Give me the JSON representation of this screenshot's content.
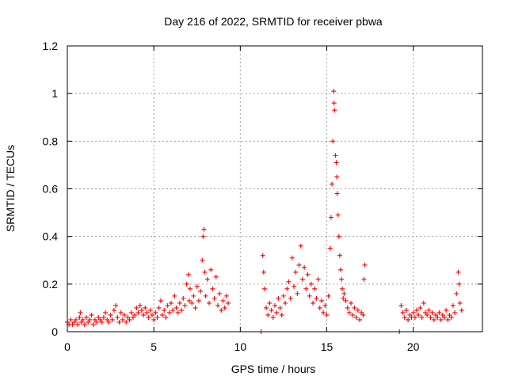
{
  "chart_data": {
    "type": "scatter",
    "title": "Day 216 of 2022, SRMTID for receiver pbwa",
    "xlabel": "GPS time / hours",
    "ylabel": "SRMTID / TECUs",
    "xlim": [
      0,
      24
    ],
    "ylim": [
      0,
      1.2
    ],
    "x_ticks": [
      0,
      5,
      10,
      15,
      20
    ],
    "x_tick_labels": [
      "0",
      "5",
      "10",
      "15",
      "20"
    ],
    "y_ticks": [
      0,
      0.2,
      0.4,
      0.6,
      0.8,
      1,
      1.2
    ],
    "y_tick_labels": [
      "0",
      "0.2",
      "0.4",
      "0.6",
      "0.8",
      "1",
      "1.2"
    ],
    "grid": true,
    "marker": "plus",
    "color": "#ff0000",
    "series": [
      {
        "name": "pbwa",
        "points": [
          [
            0.0,
            0.04
          ],
          [
            0.1,
            0.03
          ],
          [
            0.2,
            0.05
          ],
          [
            0.3,
            0.03
          ],
          [
            0.4,
            0.04
          ],
          [
            0.5,
            0.05
          ],
          [
            0.6,
            0.03
          ],
          [
            0.7,
            0.06
          ],
          [
            0.75,
            0.08
          ],
          [
            0.8,
            0.04
          ],
          [
            0.9,
            0.05
          ],
          [
            1.0,
            0.03
          ],
          [
            1.1,
            0.06
          ],
          [
            1.2,
            0.04
          ],
          [
            1.3,
            0.05
          ],
          [
            1.4,
            0.07
          ],
          [
            1.5,
            0.03
          ],
          [
            1.6,
            0.05
          ],
          [
            1.7,
            0.04
          ],
          [
            1.8,
            0.06
          ],
          [
            1.9,
            0.05
          ],
          [
            2.0,
            0.04
          ],
          [
            2.1,
            0.06
          ],
          [
            2.2,
            0.08
          ],
          [
            2.3,
            0.05
          ],
          [
            2.4,
            0.04
          ],
          [
            2.5,
            0.07
          ],
          [
            2.6,
            0.05
          ],
          [
            2.7,
            0.09
          ],
          [
            2.8,
            0.11
          ],
          [
            2.9,
            0.06
          ],
          [
            3.0,
            0.04
          ],
          [
            3.1,
            0.08
          ],
          [
            3.2,
            0.05
          ],
          [
            3.3,
            0.07
          ],
          [
            3.4,
            0.04
          ],
          [
            3.5,
            0.06
          ],
          [
            3.6,
            0.05
          ],
          [
            3.7,
            0.08
          ],
          [
            3.8,
            0.06
          ],
          [
            3.9,
            0.07
          ],
          [
            4.0,
            0.1
          ],
          [
            4.1,
            0.08
          ],
          [
            4.2,
            0.11
          ],
          [
            4.3,
            0.09
          ],
          [
            4.4,
            0.07
          ],
          [
            4.5,
            0.1
          ],
          [
            4.6,
            0.08
          ],
          [
            4.7,
            0.06
          ],
          [
            4.8,
            0.09
          ],
          [
            4.9,
            0.07
          ],
          [
            5.0,
            0.05
          ],
          [
            5.1,
            0.08
          ],
          [
            5.2,
            0.06
          ],
          [
            5.3,
            0.1
          ],
          [
            5.4,
            0.13
          ],
          [
            5.5,
            0.07
          ],
          [
            5.6,
            0.09
          ],
          [
            5.7,
            0.06
          ],
          [
            5.8,
            0.11
          ],
          [
            5.9,
            0.08
          ],
          [
            6.0,
            0.12
          ],
          [
            6.1,
            0.09
          ],
          [
            6.2,
            0.15
          ],
          [
            6.3,
            0.1
          ],
          [
            6.4,
            0.08
          ],
          [
            6.5,
            0.12
          ],
          [
            6.6,
            0.09
          ],
          [
            6.7,
            0.14
          ],
          [
            6.8,
            0.11
          ],
          [
            6.9,
            0.2
          ],
          [
            7.0,
            0.24
          ],
          [
            7.05,
            0.13
          ],
          [
            7.1,
            0.18
          ],
          [
            7.2,
            0.12
          ],
          [
            7.3,
            0.15
          ],
          [
            7.4,
            0.1
          ],
          [
            7.5,
            0.19
          ],
          [
            7.6,
            0.13
          ],
          [
            7.7,
            0.17
          ],
          [
            7.8,
            0.3
          ],
          [
            7.85,
            0.4
          ],
          [
            7.9,
            0.43
          ],
          [
            7.95,
            0.25
          ],
          [
            8.0,
            0.15
          ],
          [
            8.1,
            0.22
          ],
          [
            8.2,
            0.12
          ],
          [
            8.3,
            0.26
          ],
          [
            8.4,
            0.18
          ],
          [
            8.5,
            0.14
          ],
          [
            8.6,
            0.23
          ],
          [
            8.7,
            0.11
          ],
          [
            8.8,
            0.16
          ],
          [
            8.9,
            0.09
          ],
          [
            9.0,
            0.13
          ],
          [
            9.1,
            0.1
          ],
          [
            9.2,
            0.15
          ],
          [
            9.3,
            0.12
          ],
          [
            11.2,
            0.0
          ],
          [
            11.3,
            0.32
          ],
          [
            11.35,
            0.25
          ],
          [
            11.4,
            0.18
          ],
          [
            11.5,
            0.1
          ],
          [
            11.6,
            0.07
          ],
          [
            11.7,
            0.12
          ],
          [
            11.8,
            0.09
          ],
          [
            11.9,
            0.06
          ],
          [
            12.0,
            0.11
          ],
          [
            12.1,
            0.08
          ],
          [
            12.2,
            0.14
          ],
          [
            12.3,
            0.1
          ],
          [
            12.4,
            0.07
          ],
          [
            12.5,
            0.15
          ],
          [
            12.6,
            0.12
          ],
          [
            12.7,
            0.18
          ],
          [
            12.8,
            0.21
          ],
          [
            12.9,
            0.14
          ],
          [
            13.0,
            0.31
          ],
          [
            13.1,
            0.19
          ],
          [
            13.2,
            0.25
          ],
          [
            13.3,
            0.16
          ],
          [
            13.4,
            0.28
          ],
          [
            13.5,
            0.36
          ],
          [
            13.6,
            0.22
          ],
          [
            13.7,
            0.27
          ],
          [
            13.8,
            0.18
          ],
          [
            13.9,
            0.24
          ],
          [
            14.0,
            0.15
          ],
          [
            14.1,
            0.2
          ],
          [
            14.2,
            0.12
          ],
          [
            14.3,
            0.18
          ],
          [
            14.4,
            0.14
          ],
          [
            14.5,
            0.22
          ],
          [
            14.6,
            0.1
          ],
          [
            14.7,
            0.13
          ],
          [
            14.8,
            0.08
          ],
          [
            14.9,
            0.11
          ],
          [
            15.0,
            0.07
          ],
          [
            15.1,
            0.15
          ],
          [
            15.2,
            0.35
          ],
          [
            15.25,
            0.48
          ],
          [
            15.3,
            0.62
          ],
          [
            15.35,
            0.8
          ],
          [
            15.4,
            1.01
          ],
          [
            15.42,
            0.96
          ],
          [
            15.45,
            0.93
          ],
          [
            15.5,
            0.74
          ],
          [
            15.55,
            0.71
          ],
          [
            15.58,
            0.65
          ],
          [
            15.6,
            0.58
          ],
          [
            15.65,
            0.49
          ],
          [
            15.7,
            0.4
          ],
          [
            15.75,
            0.32
          ],
          [
            15.8,
            0.26
          ],
          [
            15.85,
            0.22
          ],
          [
            15.9,
            0.18
          ],
          [
            15.95,
            0.14
          ],
          [
            16.0,
            0.16
          ],
          [
            16.1,
            0.13
          ],
          [
            16.2,
            0.1
          ],
          [
            16.3,
            0.08
          ],
          [
            16.4,
            0.12
          ],
          [
            16.5,
            0.07
          ],
          [
            16.6,
            0.1
          ],
          [
            16.7,
            0.06
          ],
          [
            16.8,
            0.09
          ],
          [
            16.9,
            0.05
          ],
          [
            17.0,
            0.08
          ],
          [
            17.1,
            0.07
          ],
          [
            17.15,
            0.22
          ],
          [
            17.2,
            0.28
          ],
          [
            19.2,
            0.0
          ],
          [
            19.3,
            0.11
          ],
          [
            19.4,
            0.08
          ],
          [
            19.5,
            0.06
          ],
          [
            19.6,
            0.09
          ],
          [
            19.7,
            0.05
          ],
          [
            19.8,
            0.07
          ],
          [
            19.9,
            0.06
          ],
          [
            20.0,
            0.08
          ],
          [
            20.1,
            0.06
          ],
          [
            20.2,
            0.09
          ],
          [
            20.3,
            0.07
          ],
          [
            20.4,
            0.1
          ],
          [
            20.5,
            0.06
          ],
          [
            20.6,
            0.12
          ],
          [
            20.7,
            0.08
          ],
          [
            20.8,
            0.07
          ],
          [
            20.9,
            0.09
          ],
          [
            21.0,
            0.06
          ],
          [
            21.1,
            0.08
          ],
          [
            21.2,
            0.05
          ],
          [
            21.3,
            0.07
          ],
          [
            21.4,
            0.06
          ],
          [
            21.5,
            0.08
          ],
          [
            21.6,
            0.05
          ],
          [
            21.7,
            0.07
          ],
          [
            21.8,
            0.06
          ],
          [
            21.9,
            0.09
          ],
          [
            22.0,
            0.05
          ],
          [
            22.1,
            0.07
          ],
          [
            22.2,
            0.06
          ],
          [
            22.3,
            0.11
          ],
          [
            22.4,
            0.08
          ],
          [
            22.5,
            0.16
          ],
          [
            22.6,
            0.25
          ],
          [
            22.65,
            0.2
          ],
          [
            22.7,
            0.12
          ],
          [
            22.8,
            0.09
          ]
        ]
      }
    ]
  }
}
